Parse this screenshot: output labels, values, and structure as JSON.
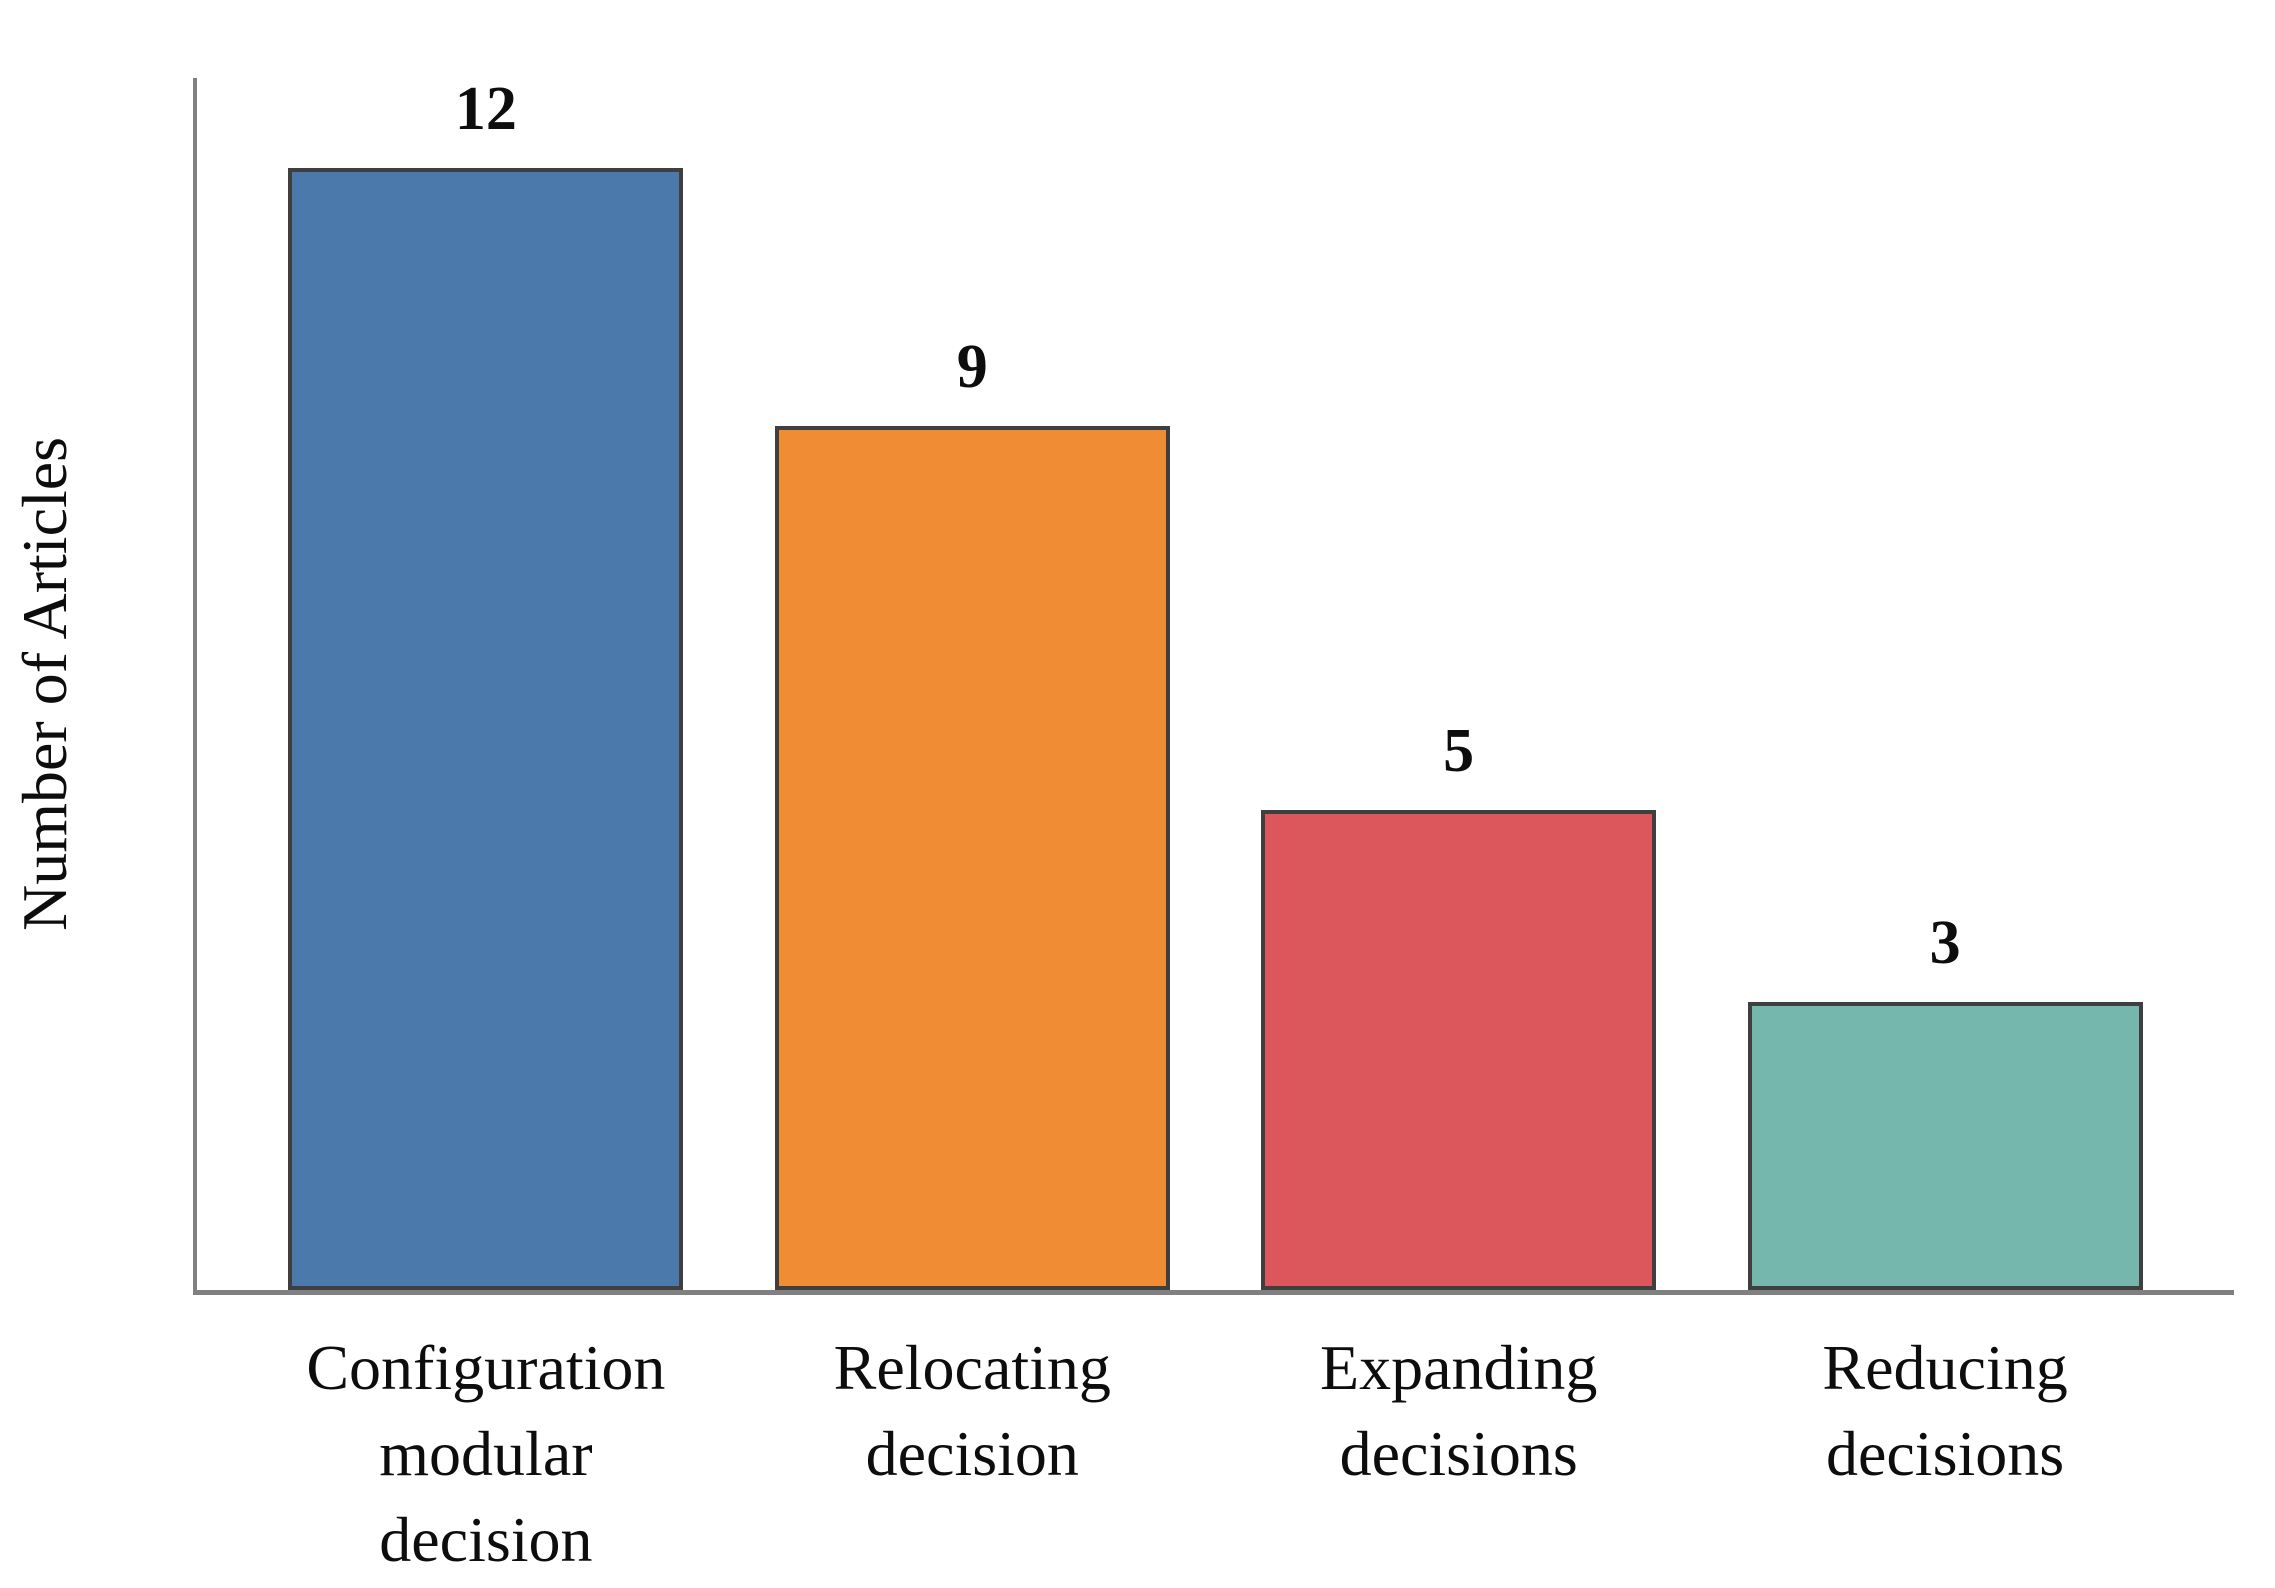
{
  "figure": {
    "background_color": "#ffffff"
  },
  "chart_data": {
    "type": "bar",
    "title": "",
    "xlabel": "",
    "ylabel": "Number of Articles",
    "categories": [
      "Configuration modular decision",
      "Relocating decision",
      "Expanding decisions",
      "Reducing decisions"
    ],
    "category_lines": [
      [
        "Configuration",
        "modular",
        "decision"
      ],
      [
        "Relocating",
        "decision"
      ],
      [
        "Expanding",
        "decisions"
      ],
      [
        "Reducing",
        "decisions"
      ]
    ],
    "values": [
      12,
      9,
      5,
      3
    ],
    "data_labels": [
      "12",
      "9",
      "5",
      "3"
    ],
    "bar_colors": [
      "#4c79ac",
      "#f08c33",
      "#dc575c",
      "#75b7ac"
    ],
    "bar_border_color": "#3f3f3f",
    "axis_color": "#808080",
    "text_color": "#0d0d0d",
    "ylim": [
      0,
      12.7
    ],
    "grid": false,
    "legend": "none",
    "y_ticks": "none"
  }
}
